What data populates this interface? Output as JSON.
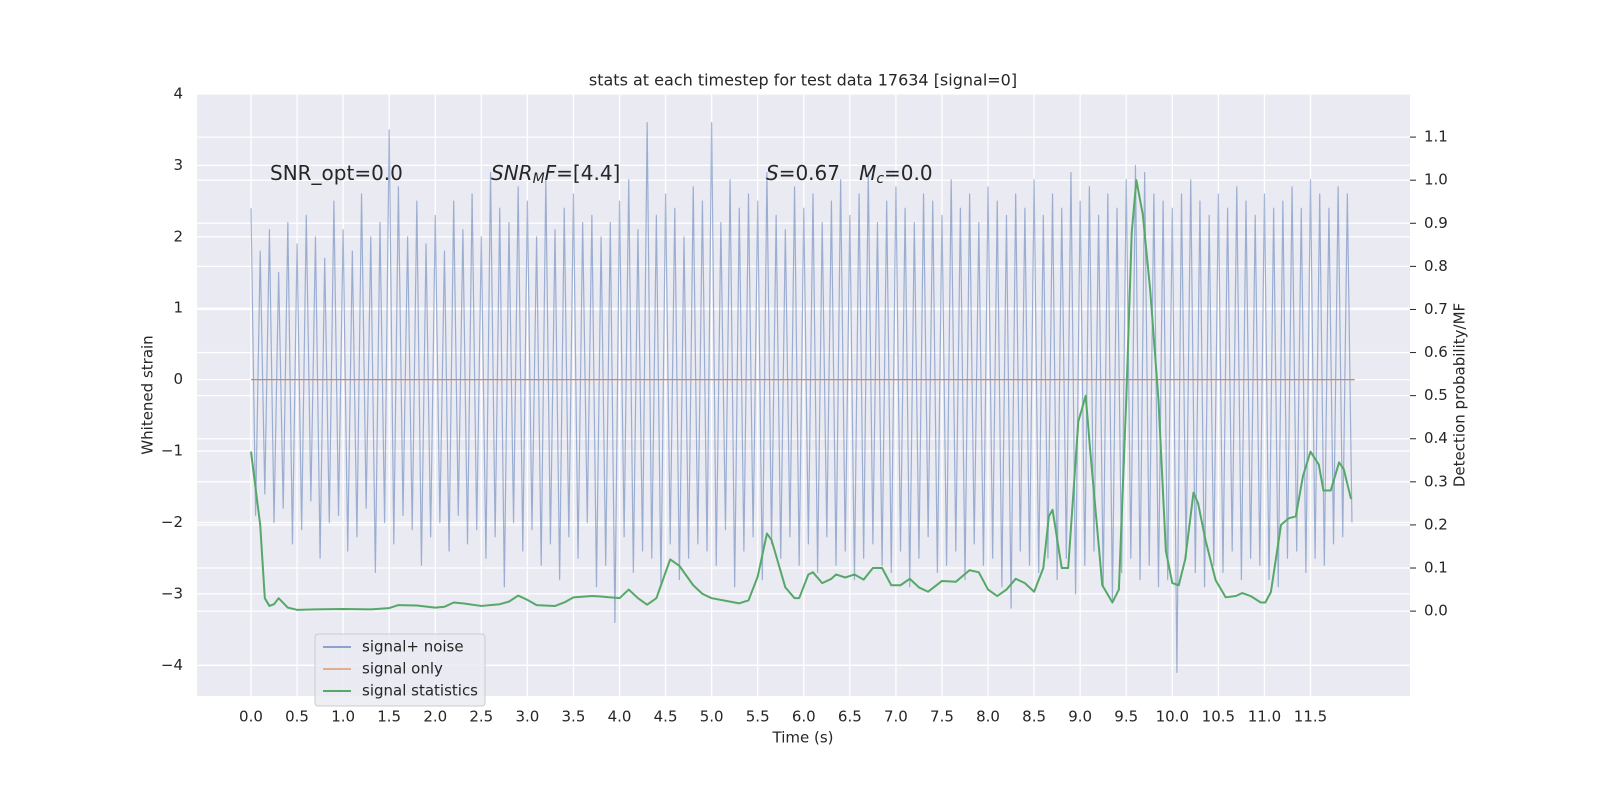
{
  "chart_data": {
    "type": "line",
    "title": "stats at each timestep for test data 17634 [signal=0]",
    "xlabel": "Time (s)",
    "ylabel": "Whitened strain",
    "y2label": "Detection probability/MF",
    "grid": true,
    "legend": "lower left",
    "xlim": [
      -0.586,
      12.58
    ],
    "ylim": [
      -4.43,
      4.0
    ],
    "y2lim": [
      -0.197,
      1.2
    ],
    "xticks": [
      {
        "value": 0,
        "label": "0.0"
      },
      {
        "value": 0.5,
        "label": "0.5"
      },
      {
        "value": 1,
        "label": "1.0"
      },
      {
        "value": 1.5,
        "label": "1.5"
      },
      {
        "value": 2,
        "label": "2.0"
      },
      {
        "value": 2.5,
        "label": "2.5"
      },
      {
        "value": 3,
        "label": "3.0"
      },
      {
        "value": 3.5,
        "label": "3.5"
      },
      {
        "value": 4,
        "label": "4.0"
      },
      {
        "value": 4.5,
        "label": "4.5"
      },
      {
        "value": 5,
        "label": "5.0"
      },
      {
        "value": 5.5,
        "label": "5.5"
      },
      {
        "value": 6,
        "label": "6.0"
      },
      {
        "value": 6.5,
        "label": "6.5"
      },
      {
        "value": 7,
        "label": "7.0"
      },
      {
        "value": 7.5,
        "label": "7.5"
      },
      {
        "value": 8,
        "label": "8.0"
      },
      {
        "value": 8.5,
        "label": "8.5"
      },
      {
        "value": 9,
        "label": "9.0"
      },
      {
        "value": 9.5,
        "label": "9.5"
      },
      {
        "value": 10,
        "label": "10.0"
      },
      {
        "value": 10.5,
        "label": "10.5"
      },
      {
        "value": 11,
        "label": "11.0"
      },
      {
        "value": 11.5,
        "label": "11.5"
      }
    ],
    "yticks": [
      {
        "value": -4,
        "label": "−4"
      },
      {
        "value": -3,
        "label": "−3"
      },
      {
        "value": -2,
        "label": "−2"
      },
      {
        "value": -1,
        "label": "−1"
      },
      0,
      1,
      2,
      3,
      4
    ],
    "y2ticks": [
      {
        "value": 0,
        "label": "0.0"
      },
      {
        "value": 0.1,
        "label": "0.1"
      },
      {
        "value": 0.2,
        "label": "0.2"
      },
      {
        "value": 0.3,
        "label": "0.3"
      },
      {
        "value": 0.4,
        "label": "0.4"
      },
      {
        "value": 0.5,
        "label": "0.5"
      },
      {
        "value": 0.6,
        "label": "0.6"
      },
      {
        "value": 0.7,
        "label": "0.7"
      },
      {
        "value": 0.8,
        "label": "0.8"
      },
      {
        "value": 0.9,
        "label": "0.9"
      },
      {
        "value": 1,
        "label": "1.0"
      },
      {
        "value": 1.1,
        "label": "1.1"
      }
    ],
    "annotations": [
      [
        "SNR_opt=0.0"
      ],
      [
        "SNR",
        "M",
        "F",
        "=[4.4]"
      ],
      [
        "S",
        "=0.67   ",
        "M",
        "c",
        "=0.0"
      ]
    ],
    "series": [
      {
        "name": "signal+ noise",
        "color": "#4c72b0",
        "axis": "y",
        "x": [
          0,
          0.05,
          0.1,
          0.15,
          0.2,
          0.25,
          0.3,
          0.35,
          0.4,
          0.45,
          0.5,
          0.55,
          0.6,
          0.65,
          0.7,
          0.75,
          0.8,
          0.85,
          0.9,
          0.95,
          1,
          1.05,
          1.1,
          1.15,
          1.2,
          1.25,
          1.3,
          1.35,
          1.4,
          1.45,
          1.5,
          1.55,
          1.6,
          1.65,
          1.7,
          1.75,
          1.8,
          1.85,
          1.9,
          1.95,
          2,
          2.05,
          2.1,
          2.15,
          2.2,
          2.25,
          2.3,
          2.35,
          2.4,
          2.45,
          2.5,
          2.55,
          2.6,
          2.65,
          2.7,
          2.75,
          2.8,
          2.85,
          2.9,
          2.95,
          3,
          3.05,
          3.1,
          3.15,
          3.2,
          3.25,
          3.3,
          3.35,
          3.4,
          3.45,
          3.5,
          3.55,
          3.6,
          3.65,
          3.7,
          3.75,
          3.8,
          3.85,
          3.9,
          3.95,
          4,
          4.05,
          4.1,
          4.15,
          4.2,
          4.25,
          4.3,
          4.35,
          4.4,
          4.45,
          4.5,
          4.55,
          4.6,
          4.65,
          4.7,
          4.75,
          4.8,
          4.85,
          4.9,
          4.95,
          5,
          5.05,
          5.1,
          5.15,
          5.2,
          5.25,
          5.3,
          5.35,
          5.4,
          5.45,
          5.5,
          5.55,
          5.6,
          5.65,
          5.7,
          5.75,
          5.8,
          5.85,
          5.9,
          5.95,
          6,
          6.05,
          6.1,
          6.15,
          6.2,
          6.25,
          6.3,
          6.35,
          6.4,
          6.45,
          6.5,
          6.55,
          6.6,
          6.65,
          6.7,
          6.75,
          6.8,
          6.85,
          6.9,
          6.95,
          7,
          7.05,
          7.1,
          7.15,
          7.2,
          7.25,
          7.3,
          7.35,
          7.4,
          7.45,
          7.5,
          7.55,
          7.6,
          7.65,
          7.7,
          7.75,
          7.8,
          7.85,
          7.9,
          7.95,
          8,
          8.05,
          8.1,
          8.15,
          8.2,
          8.25,
          8.3,
          8.35,
          8.4,
          8.45,
          8.5,
          8.55,
          8.6,
          8.65,
          8.7,
          8.75,
          8.8,
          8.85,
          8.9,
          8.95,
          9,
          9.05,
          9.1,
          9.15,
          9.2,
          9.25,
          9.3,
          9.35,
          9.4,
          9.45,
          9.5,
          9.55,
          9.6,
          9.65,
          9.7,
          9.75,
          9.8,
          9.85,
          9.9,
          9.95,
          10,
          10.05,
          10.1,
          10.15,
          10.2,
          10.25,
          10.3,
          10.35,
          10.4,
          10.45,
          10.5,
          10.55,
          10.6,
          10.65,
          10.7,
          10.75,
          10.8,
          10.85,
          10.9,
          10.95,
          11,
          11.05,
          11.1,
          11.15,
          11.2,
          11.25,
          11.3,
          11.35,
          11.4,
          11.45,
          11.5,
          11.55,
          11.6,
          11.65,
          11.7,
          11.75,
          11.8,
          11.85,
          11.9,
          11.95
        ],
        "values": [
          2.4,
          -1.9,
          1.8,
          -1.6,
          2.1,
          -2.0,
          1.5,
          -1.8,
          2.2,
          -2.3,
          1.9,
          -2.1,
          2.3,
          -1.7,
          2.0,
          -2.5,
          1.7,
          -2.0,
          2.5,
          -1.9,
          2.1,
          -2.4,
          1.8,
          -2.2,
          2.6,
          -1.8,
          2.0,
          -2.7,
          2.2,
          -2.0,
          3.5,
          -2.3,
          2.7,
          -1.9,
          2.0,
          -2.1,
          2.5,
          -2.6,
          1.9,
          -2.2,
          2.3,
          -2.0,
          1.8,
          -2.4,
          2.5,
          -1.9,
          2.1,
          -2.3,
          2.6,
          -2.1,
          2.0,
          -2.5,
          2.9,
          -2.2,
          2.4,
          -2.9,
          2.2,
          -2.0,
          2.7,
          -2.4,
          2.5,
          -2.1,
          2.0,
          -2.6,
          2.8,
          -2.3,
          2.1,
          -2.8,
          2.4,
          -2.2,
          2.6,
          -2.5,
          2.2,
          -2.0,
          2.3,
          -2.9,
          2.0,
          -2.6,
          2.2,
          -3.4,
          2.5,
          -2.2,
          2.8,
          -2.7,
          2.1,
          -2.4,
          3.6,
          -2.5,
          2.3,
          -2.9,
          2.6,
          -2.3,
          2.4,
          -2.8,
          2.0,
          -2.5,
          2.7,
          -2.3,
          2.5,
          -2.4,
          3.6,
          -2.6,
          2.2,
          -2.1,
          2.8,
          -2.9,
          2.4,
          -2.4,
          2.6,
          -2.2,
          2.5,
          -2.8,
          2.9,
          -2.3,
          2.3,
          -2.5,
          2.1,
          -2.2,
          2.7,
          -2.6,
          2.4,
          -2.3,
          2.6,
          -2.7,
          2.2,
          -2.2,
          2.5,
          -2.6,
          2.8,
          -2.4,
          2.3,
          -2.8,
          2.6,
          -2.5,
          2.9,
          -2.3,
          2.2,
          -2.6,
          2.5,
          -2.7,
          2.7,
          -2.4,
          2.4,
          -2.9,
          2.2,
          -2.5,
          2.6,
          -2.2,
          2.5,
          -2.7,
          2.3,
          -2.6,
          2.8,
          -2.4,
          2.4,
          -2.8,
          2.6,
          -2.3,
          2.2,
          -2.6,
          2.7,
          -2.5,
          2.5,
          -2.9,
          2.3,
          -3.2,
          2.6,
          -2.4,
          2.4,
          -2.6,
          2.8,
          -2.7,
          2.3,
          -2.5,
          2.6,
          -2.8,
          2.4,
          -2.5,
          2.9,
          -3.0,
          2.5,
          -2.6,
          2.7,
          -2.4,
          2.3,
          -2.9,
          2.6,
          -3.1,
          2.4,
          -2.7,
          2.8,
          -2.5,
          3.0,
          -2.8,
          2.9,
          -2.6,
          2.6,
          -2.9,
          2.5,
          -2.8,
          2.4,
          -4.1,
          2.6,
          -2.5,
          2.8,
          -2.7,
          2.5,
          -2.9,
          2.3,
          -2.6,
          2.6,
          -2.7,
          2.4,
          -2.4,
          2.7,
          -2.8,
          2.5,
          -2.5,
          2.3,
          -2.6,
          2.6,
          -2.8,
          2.4,
          -2.9,
          2.5,
          -2.5,
          2.7,
          -2.4,
          2.4,
          -2.7,
          2.8,
          -2.5,
          2.6,
          -2.6,
          2.4,
          -2.3,
          2.7,
          -2.2,
          2.6,
          -2.0
        ]
      },
      {
        "name": "signal only",
        "color": "#dd8452",
        "axis": "y",
        "x": [
          0,
          11.98
        ],
        "values": [
          0,
          0
        ]
      },
      {
        "name": "signal statistics",
        "color": "#55a868",
        "axis": "y2",
        "x": [
          0,
          0.1,
          0.15,
          0.2,
          0.25,
          0.3,
          0.4,
          0.5,
          0.7,
          1.0,
          1.3,
          1.5,
          1.6,
          1.8,
          2.0,
          2.1,
          2.2,
          2.3,
          2.5,
          2.7,
          2.8,
          2.9,
          3.0,
          3.1,
          3.3,
          3.4,
          3.5,
          3.7,
          3.8,
          3.9,
          4.0,
          4.1,
          4.2,
          4.3,
          4.4,
          4.5,
          4.55,
          4.65,
          4.8,
          4.9,
          5.0,
          5.2,
          5.3,
          5.4,
          5.5,
          5.6,
          5.65,
          5.8,
          5.9,
          5.95,
          6.05,
          6.1,
          6.2,
          6.3,
          6.35,
          6.45,
          6.55,
          6.65,
          6.75,
          6.85,
          6.95,
          7.05,
          7.15,
          7.25,
          7.35,
          7.5,
          7.65,
          7.8,
          7.9,
          8.0,
          8.1,
          8.2,
          8.3,
          8.4,
          8.5,
          8.6,
          8.66,
          8.7,
          8.8,
          8.87,
          8.98,
          9.06,
          9.11,
          9.24,
          9.35,
          9.42,
          9.5,
          9.56,
          9.61,
          9.68,
          9.76,
          9.85,
          9.93,
          10.0,
          10.07,
          10.14,
          10.23,
          10.28,
          10.36,
          10.47,
          10.58,
          10.69,
          10.76,
          10.85,
          10.96,
          11.01,
          11.07,
          11.18,
          11.26,
          11.34,
          11.42,
          11.5,
          11.59,
          11.64,
          11.72,
          11.81,
          11.86,
          11.94
        ],
        "values": [
          0.37,
          0.2,
          0.03,
          0.012,
          0.016,
          0.03,
          0.008,
          0.003,
          0.004,
          0.005,
          0.004,
          0.007,
          0.014,
          0.013,
          0.008,
          0.01,
          0.02,
          0.018,
          0.012,
          0.016,
          0.022,
          0.036,
          0.026,
          0.014,
          0.012,
          0.02,
          0.032,
          0.035,
          0.034,
          0.032,
          0.03,
          0.05,
          0.03,
          0.015,
          0.03,
          0.09,
          0.12,
          0.105,
          0.06,
          0.04,
          0.03,
          0.022,
          0.018,
          0.025,
          0.08,
          0.18,
          0.165,
          0.055,
          0.03,
          0.03,
          0.085,
          0.09,
          0.065,
          0.075,
          0.085,
          0.078,
          0.085,
          0.073,
          0.1,
          0.1,
          0.06,
          0.06,
          0.075,
          0.055,
          0.045,
          0.07,
          0.068,
          0.095,
          0.09,
          0.05,
          0.035,
          0.05,
          0.075,
          0.065,
          0.045,
          0.1,
          0.22,
          0.235,
          0.1,
          0.1,
          0.44,
          0.5,
          0.37,
          0.06,
          0.02,
          0.05,
          0.49,
          0.88,
          1.0,
          0.92,
          0.745,
          0.49,
          0.14,
          0.065,
          0.06,
          0.12,
          0.275,
          0.25,
          0.165,
          0.072,
          0.032,
          0.035,
          0.042,
          0.035,
          0.02,
          0.02,
          0.044,
          0.2,
          0.215,
          0.22,
          0.315,
          0.37,
          0.34,
          0.28,
          0.28,
          0.345,
          0.33,
          0.26
        ]
      }
    ]
  }
}
